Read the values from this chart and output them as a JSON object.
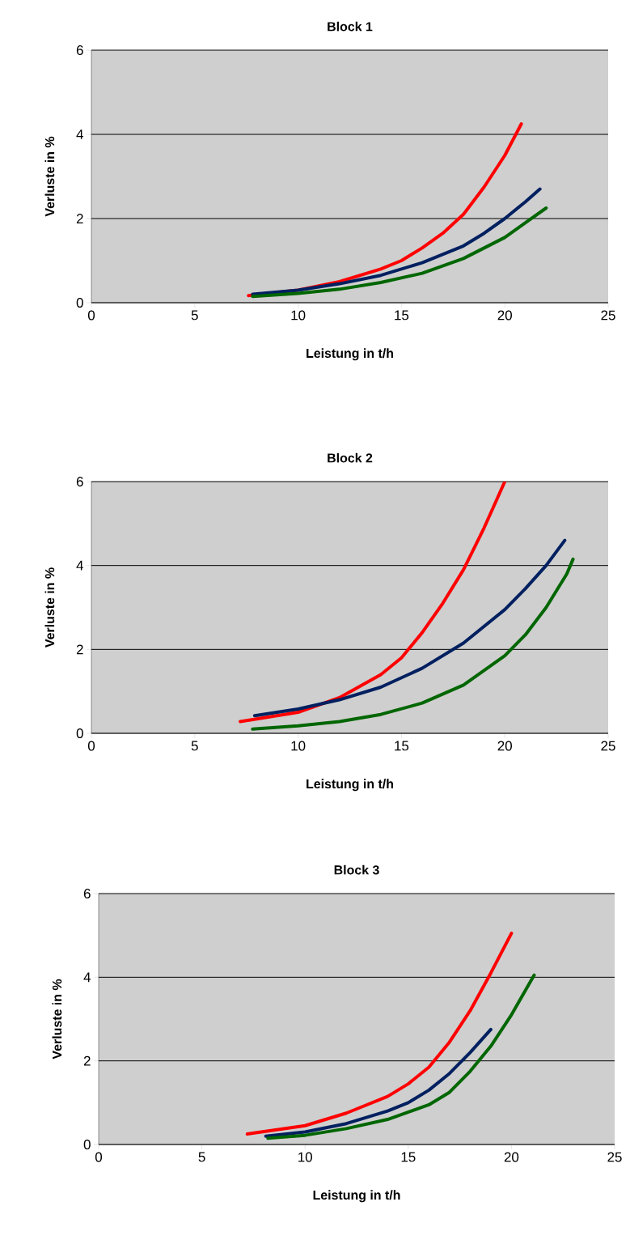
{
  "chart_data": [
    {
      "type": "line",
      "title": "Block 1",
      "xlabel": "Leistung in t/h",
      "ylabel": "Verluste in %",
      "xlim": [
        0,
        25
      ],
      "ylim": [
        0,
        6
      ],
      "xticks": [
        0,
        5,
        10,
        15,
        20,
        25
      ],
      "yticks": [
        0,
        2,
        4,
        6
      ],
      "grid": "y",
      "series": [
        {
          "color": "#ff0000",
          "x": [
            7.6,
            10,
            12,
            14,
            15,
            16,
            17,
            18,
            19,
            20,
            20.8
          ],
          "values": [
            0.17,
            0.3,
            0.5,
            0.8,
            1.0,
            1.3,
            1.65,
            2.1,
            2.75,
            3.5,
            4.25
          ]
        },
        {
          "color": "#002060",
          "x": [
            7.8,
            10,
            12,
            14,
            16,
            18,
            19,
            20,
            21,
            21.7
          ],
          "values": [
            0.2,
            0.3,
            0.45,
            0.65,
            0.95,
            1.35,
            1.65,
            2.0,
            2.4,
            2.7
          ]
        },
        {
          "color": "#006600",
          "x": [
            7.8,
            10,
            12,
            14,
            16,
            18,
            20,
            21,
            22
          ],
          "values": [
            0.15,
            0.22,
            0.32,
            0.48,
            0.7,
            1.05,
            1.55,
            1.9,
            2.25
          ]
        }
      ]
    },
    {
      "type": "line",
      "title": "Block 2",
      "xlabel": "Leistung in t/h",
      "ylabel": "Verluste in %",
      "xlim": [
        0,
        25
      ],
      "ylim": [
        0,
        6
      ],
      "xticks": [
        0,
        5,
        10,
        15,
        20,
        25
      ],
      "yticks": [
        0,
        2,
        4,
        6
      ],
      "grid": "y",
      "series": [
        {
          "color": "#ff0000",
          "x": [
            7.2,
            10,
            12,
            14,
            15,
            16,
            17,
            18,
            19,
            20
          ],
          "values": [
            0.28,
            0.5,
            0.85,
            1.4,
            1.8,
            2.4,
            3.1,
            3.9,
            4.9,
            6.0
          ]
        },
        {
          "color": "#002060",
          "x": [
            7.9,
            10,
            12,
            14,
            16,
            18,
            20,
            21,
            22,
            22.9
          ],
          "values": [
            0.42,
            0.58,
            0.8,
            1.1,
            1.55,
            2.15,
            2.95,
            3.45,
            4.0,
            4.6
          ]
        },
        {
          "color": "#006600",
          "x": [
            7.8,
            10,
            12,
            14,
            16,
            18,
            20,
            21,
            22,
            23,
            23.3
          ],
          "values": [
            0.1,
            0.18,
            0.28,
            0.45,
            0.72,
            1.15,
            1.85,
            2.35,
            3.0,
            3.8,
            4.15
          ]
        }
      ]
    },
    {
      "type": "line",
      "title": "Block 3",
      "xlabel": "Leistung in t/h",
      "ylabel": "Verluste in %",
      "xlim": [
        0,
        25
      ],
      "ylim": [
        0,
        6
      ],
      "xticks": [
        0,
        5,
        10,
        15,
        20,
        25
      ],
      "yticks": [
        0,
        2,
        4,
        6
      ],
      "grid": "y",
      "series": [
        {
          "color": "#ff0000",
          "x": [
            7.2,
            10,
            12,
            14,
            15,
            16,
            17,
            18,
            19,
            20
          ],
          "values": [
            0.25,
            0.45,
            0.75,
            1.15,
            1.45,
            1.85,
            2.45,
            3.2,
            4.1,
            5.05
          ]
        },
        {
          "color": "#002060",
          "x": [
            8.1,
            10,
            12,
            14,
            15,
            16,
            17,
            18,
            19
          ],
          "values": [
            0.2,
            0.3,
            0.5,
            0.8,
            1.0,
            1.3,
            1.7,
            2.2,
            2.75
          ]
        },
        {
          "color": "#006600",
          "x": [
            8.2,
            10,
            12,
            14,
            16,
            17,
            18,
            19,
            20,
            21.1
          ],
          "values": [
            0.15,
            0.22,
            0.38,
            0.6,
            0.95,
            1.25,
            1.75,
            2.35,
            3.1,
            4.05
          ]
        }
      ]
    }
  ]
}
